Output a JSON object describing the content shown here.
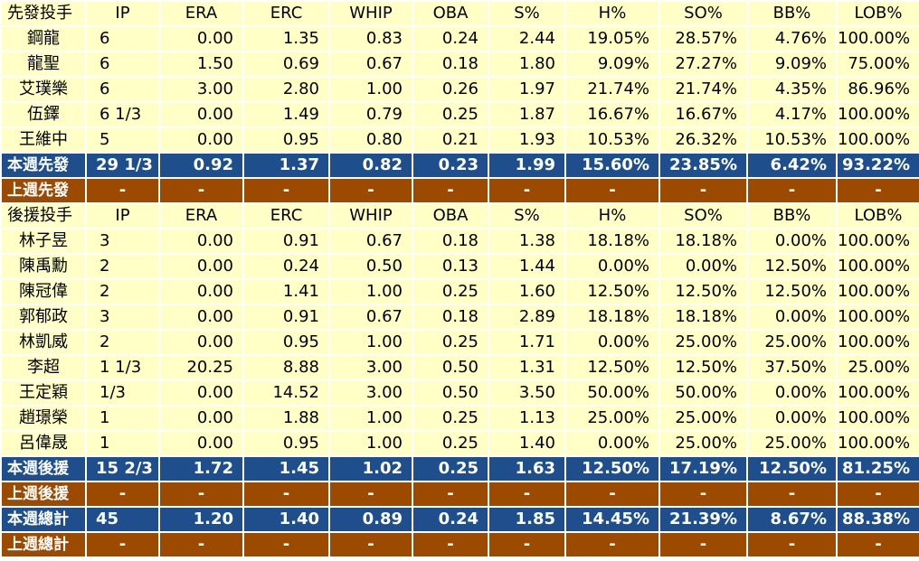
{
  "columns": [
    "IP",
    "ERA",
    "ERC",
    "WHIP",
    "OBA",
    "S%",
    "H%",
    "SO%",
    "BB%",
    "LOB%"
  ],
  "sections": [
    {
      "header_label": "先發投手",
      "rows": [
        [
          "鋼龍",
          "6",
          "0.00",
          "1.35",
          "0.83",
          "0.24",
          "2.44",
          "19.05%",
          "28.57%",
          "4.76%",
          "100.00%"
        ],
        [
          "龍聖",
          "6",
          "1.50",
          "0.69",
          "0.67",
          "0.18",
          "1.80",
          "9.09%",
          "27.27%",
          "9.09%",
          "75.00%"
        ],
        [
          "艾璞樂",
          "6",
          "3.00",
          "2.80",
          "1.00",
          "0.26",
          "1.97",
          "21.74%",
          "21.74%",
          "4.35%",
          "86.96%"
        ],
        [
          "伍鐸",
          "6 1/3",
          "0.00",
          "1.49",
          "0.79",
          "0.25",
          "1.87",
          "16.67%",
          "16.67%",
          "4.17%",
          "100.00%"
        ],
        [
          "王維中",
          "5",
          "0.00",
          "0.95",
          "0.80",
          "0.21",
          "1.93",
          "10.53%",
          "26.32%",
          "10.53%",
          "100.00%"
        ]
      ],
      "summary": [
        "本週先發",
        "29 1/3",
        "0.92",
        "1.37",
        "0.82",
        "0.23",
        "1.99",
        "15.60%",
        "23.85%",
        "6.42%",
        "93.22%"
      ],
      "prev": [
        "上週先發",
        "-",
        "-",
        "-",
        "-",
        "-",
        "-",
        "-",
        "-",
        "-",
        "-"
      ]
    },
    {
      "header_label": "後援投手",
      "rows": [
        [
          "林子昱",
          "3",
          "0.00",
          "0.91",
          "0.67",
          "0.18",
          "1.38",
          "18.18%",
          "18.18%",
          "0.00%",
          "100.00%"
        ],
        [
          "陳禹勳",
          "2",
          "0.00",
          "0.24",
          "0.50",
          "0.13",
          "1.44",
          "0.00%",
          "0.00%",
          "12.50%",
          "100.00%"
        ],
        [
          "陳冠偉",
          "2",
          "0.00",
          "1.41",
          "1.00",
          "0.25",
          "1.60",
          "12.50%",
          "12.50%",
          "12.50%",
          "100.00%"
        ],
        [
          "郭郁政",
          "3",
          "0.00",
          "0.91",
          "0.67",
          "0.18",
          "2.89",
          "18.18%",
          "18.18%",
          "0.00%",
          "100.00%"
        ],
        [
          "林凱威",
          "2",
          "0.00",
          "0.95",
          "1.00",
          "0.25",
          "1.71",
          "0.00%",
          "25.00%",
          "25.00%",
          "100.00%"
        ],
        [
          "李超",
          "1 1/3",
          "20.25",
          "8.88",
          "3.00",
          "0.50",
          "1.31",
          "12.50%",
          "12.50%",
          "37.50%",
          "25.00%"
        ],
        [
          "王定穎",
          "1/3",
          "0.00",
          "14.52",
          "3.00",
          "0.50",
          "3.50",
          "50.00%",
          "50.00%",
          "0.00%",
          "100.00%"
        ],
        [
          "趙璟榮",
          "1",
          "0.00",
          "1.88",
          "1.00",
          "0.25",
          "1.13",
          "25.00%",
          "25.00%",
          "0.00%",
          "100.00%"
        ],
        [
          "呂偉晟",
          "1",
          "0.00",
          "0.95",
          "1.00",
          "0.25",
          "1.40",
          "0.00%",
          "25.00%",
          "25.00%",
          "100.00%"
        ]
      ],
      "summary": [
        "本週後援",
        "15 2/3",
        "1.72",
        "1.45",
        "1.02",
        "0.25",
        "1.63",
        "12.50%",
        "17.19%",
        "12.50%",
        "81.25%"
      ],
      "prev": [
        "上週後援",
        "-",
        "-",
        "-",
        "-",
        "-",
        "-",
        "-",
        "-",
        "-",
        "-"
      ]
    }
  ],
  "total": {
    "summary": [
      "本週總計",
      "45",
      "1.20",
      "1.40",
      "0.89",
      "0.24",
      "1.85",
      "14.45%",
      "21.39%",
      "8.67%",
      "88.38%"
    ],
    "prev": [
      "上週總計",
      "-",
      "-",
      "-",
      "-",
      "-",
      "-",
      "-",
      "-",
      "-",
      "-"
    ]
  },
  "colors": {
    "data_bg": "#ffffc6",
    "summary_bg": "#1f4e8c",
    "prev_bg": "#9c4a00"
  }
}
